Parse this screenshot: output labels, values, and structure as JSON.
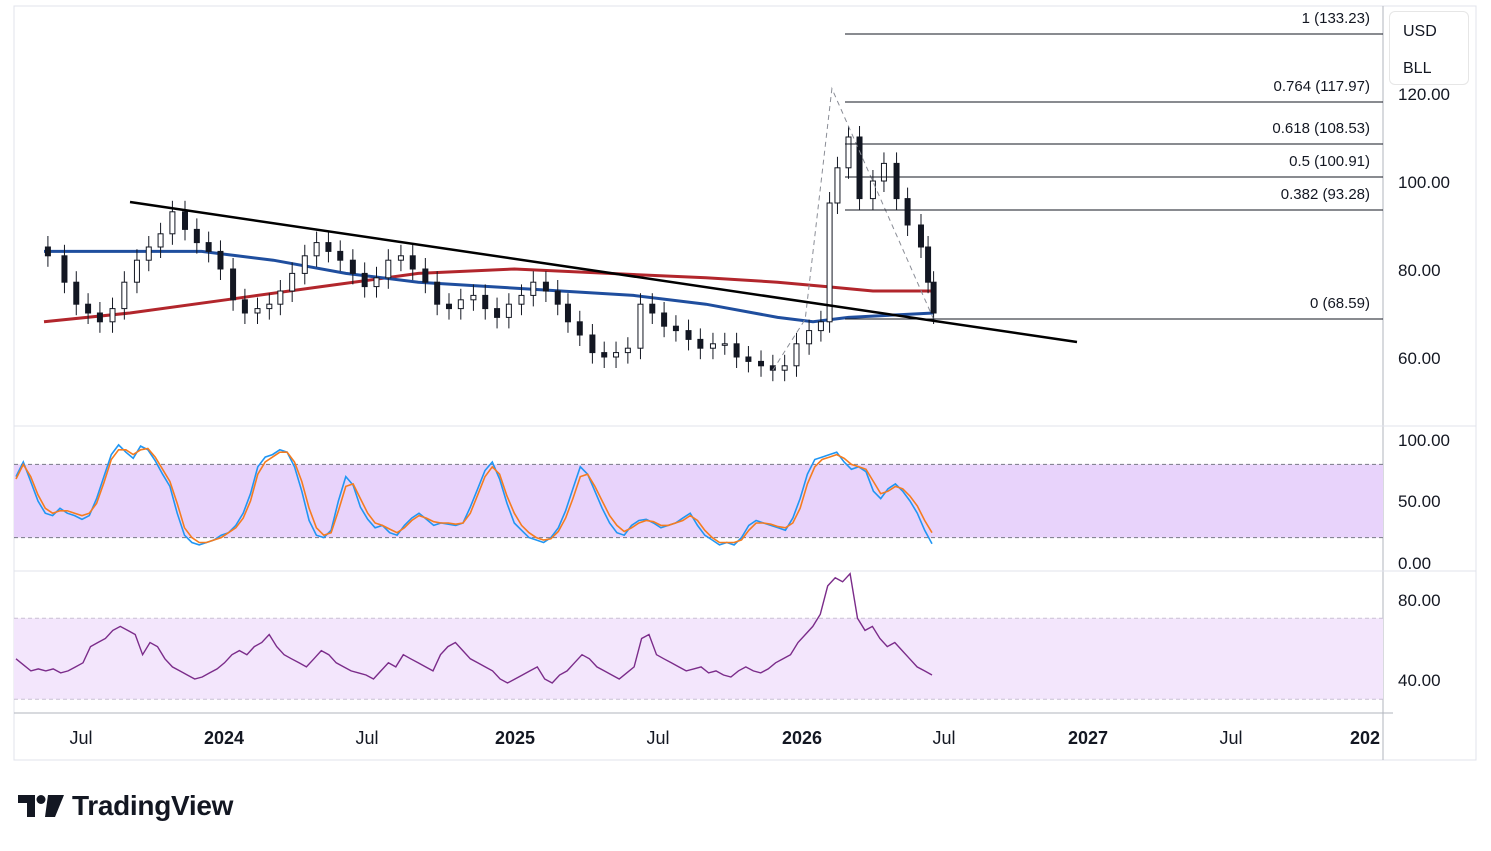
{
  "chart_data": [
    {
      "type": "candlestick",
      "symbol": "BLL",
      "currency": "USD",
      "price_axis": {
        "ticks": [
          "120.00",
          "100.00",
          "80.00",
          "60.00"
        ],
        "range": [
          48,
          140
        ]
      },
      "time_axis": {
        "ticks": [
          "Jul",
          "2024",
          "Jul",
          "2025",
          "Jul",
          "2026",
          "Jul",
          "2027",
          "Jul",
          "202"
        ],
        "tick_dates": [
          "2023-07-01",
          "2024-01-01",
          "2024-07-01",
          "2025-01-01",
          "2025-07-01",
          "2026-01-01",
          "2026-07-01",
          "2027-01-01",
          "2027-07-01",
          "2028-01-01"
        ]
      },
      "fibonacci": [
        {
          "label": "1 (133.23)",
          "ratio": 1,
          "price": 133.23
        },
        {
          "label": "0.764 (117.97)",
          "ratio": 0.764,
          "price": 117.97
        },
        {
          "label": "0.618 (108.53)",
          "ratio": 0.618,
          "price": 108.53
        },
        {
          "label": "0.5 (100.91)",
          "ratio": 0.5,
          "price": 100.91
        },
        {
          "label": "0.382 (93.28)",
          "ratio": 0.382,
          "price": 93.28
        },
        {
          "label": "0 (68.59)",
          "ratio": 0,
          "price": 68.59
        }
      ],
      "trendline": {
        "start": [
          "2023-10-15",
          95
        ],
        "end": [
          "2027-01-01",
          63
        ]
      },
      "candles_approx": [
        [
          "2023-05-20",
          83
        ],
        [
          "2023-06-10",
          77
        ],
        [
          "2023-06-25",
          72
        ],
        [
          "2023-07-10",
          70
        ],
        [
          "2023-07-25",
          68
        ],
        [
          "2023-08-10",
          71
        ],
        [
          "2023-08-25",
          77
        ],
        [
          "2023-09-10",
          82
        ],
        [
          "2023-09-25",
          85
        ],
        [
          "2023-10-10",
          88
        ],
        [
          "2023-10-25",
          93
        ],
        [
          "2023-11-10",
          89
        ],
        [
          "2023-11-25",
          86
        ],
        [
          "2023-12-10",
          84
        ],
        [
          "2023-12-25",
          80
        ],
        [
          "2024-01-10",
          73
        ],
        [
          "2024-01-25",
          70
        ],
        [
          "2024-02-10",
          71
        ],
        [
          "2024-02-25",
          72
        ],
        [
          "2024-03-10",
          75
        ],
        [
          "2024-03-25",
          79
        ],
        [
          "2024-04-10",
          83
        ],
        [
          "2024-04-25",
          86
        ],
        [
          "2024-05-10",
          84
        ],
        [
          "2024-05-25",
          82
        ],
        [
          "2024-06-10",
          79
        ],
        [
          "2024-06-25",
          76
        ],
        [
          "2024-07-10",
          78
        ],
        [
          "2024-07-25",
          82
        ],
        [
          "2024-08-10",
          83
        ],
        [
          "2024-08-25",
          80
        ],
        [
          "2024-09-10",
          77
        ],
        [
          "2024-09-25",
          72
        ],
        [
          "2024-10-10",
          71
        ],
        [
          "2024-10-25",
          73
        ],
        [
          "2024-11-10",
          74
        ],
        [
          "2024-11-25",
          71
        ],
        [
          "2024-12-10",
          69
        ],
        [
          "2024-12-25",
          72
        ],
        [
          "2025-01-10",
          74
        ],
        [
          "2025-01-25",
          77
        ],
        [
          "2025-02-10",
          75
        ],
        [
          "2025-02-25",
          72
        ],
        [
          "2025-03-10",
          68
        ],
        [
          "2025-03-25",
          65
        ],
        [
          "2025-04-10",
          61
        ],
        [
          "2025-04-25",
          60
        ],
        [
          "2025-05-10",
          61
        ],
        [
          "2025-05-25",
          62
        ],
        [
          "2025-06-10",
          72
        ],
        [
          "2025-06-25",
          70
        ],
        [
          "2025-07-10",
          67
        ],
        [
          "2025-07-25",
          66
        ],
        [
          "2025-08-10",
          64
        ],
        [
          "2025-08-25",
          62
        ],
        [
          "2025-09-10",
          63
        ],
        [
          "2025-09-25",
          63
        ],
        [
          "2025-10-10",
          60
        ],
        [
          "2025-10-25",
          59
        ],
        [
          "2025-11-10",
          58
        ],
        [
          "2025-11-25",
          57
        ],
        [
          "2025-12-10",
          58
        ],
        [
          "2025-12-25",
          63
        ],
        [
          "2026-01-10",
          66
        ],
        [
          "2026-01-25",
          68
        ],
        [
          "2026-02-05",
          95
        ],
        [
          "2026-02-15",
          103
        ],
        [
          "2026-03-01",
          110
        ],
        [
          "2026-03-15",
          96
        ],
        [
          "2026-04-01",
          100
        ],
        [
          "2026-04-15",
          104
        ],
        [
          "2026-05-01",
          96
        ],
        [
          "2026-05-15",
          90
        ],
        [
          "2026-06-01",
          85
        ],
        [
          "2026-06-10",
          77
        ],
        [
          "2026-06-17",
          70
        ]
      ],
      "moving_averages": [
        {
          "color": "#b2262c",
          "points": [
            [
              "2023-05-15",
              68
            ],
            [
              "2023-09-01",
              70
            ],
            [
              "2024-01-01",
              73
            ],
            [
              "2024-05-01",
              76
            ],
            [
              "2024-09-01",
              79
            ],
            [
              "2025-01-01",
              80
            ],
            [
              "2025-05-01",
              79
            ],
            [
              "2025-09-01",
              78
            ],
            [
              "2025-12-01",
              77
            ],
            [
              "2026-02-01",
              76
            ],
            [
              "2026-04-01",
              75
            ],
            [
              "2026-06-17",
              75
            ]
          ]
        },
        {
          "color": "#1f4e9e",
          "points": [
            [
              "2023-05-15",
              84
            ],
            [
              "2023-09-01",
              84
            ],
            [
              "2023-12-01",
              84
            ],
            [
              "2024-03-01",
              82
            ],
            [
              "2024-06-01",
              79
            ],
            [
              "2024-09-01",
              77
            ],
            [
              "2024-12-01",
              76
            ],
            [
              "2025-03-01",
              75
            ],
            [
              "2025-06-01",
              74
            ],
            [
              "2025-09-01",
              72
            ],
            [
              "2025-12-01",
              69
            ],
            [
              "2026-01-15",
              68
            ],
            [
              "2026-03-01",
              69
            ],
            [
              "2026-06-17",
              70
            ]
          ]
        }
      ]
    },
    {
      "type": "line",
      "indicator": "stochastic",
      "ticks": [
        "100.00",
        "50.00",
        "0.00"
      ],
      "band": [
        20,
        80
      ],
      "series": [
        {
          "color": "#2196f3",
          "values": [
            70,
            82,
            66,
            50,
            40,
            38,
            44,
            40,
            38,
            35,
            38,
            52,
            70,
            88,
            96,
            90,
            85,
            95,
            92,
            83,
            72,
            62,
            40,
            22,
            16,
            14,
            16,
            18,
            22,
            24,
            30,
            40,
            56,
            78,
            86,
            88,
            92,
            90,
            78,
            58,
            34,
            22,
            20,
            26,
            50,
            70,
            63,
            45,
            35,
            28,
            30,
            24,
            22,
            30,
            36,
            40,
            35,
            30,
            32,
            31,
            30,
            32,
            45,
            60,
            75,
            82,
            68,
            48,
            32,
            26,
            20,
            18,
            16,
            20,
            28,
            42,
            60,
            78,
            72,
            58,
            44,
            32,
            24,
            22,
            30,
            34,
            35,
            32,
            28,
            30,
            32,
            36,
            40,
            30,
            22,
            18,
            14,
            16,
            14,
            20,
            30,
            34,
            32,
            30,
            28,
            26,
            36,
            52,
            72,
            84,
            86,
            88,
            90,
            82,
            76,
            78,
            74,
            58,
            52,
            60,
            64,
            58,
            50,
            40,
            26,
            15
          ]
        },
        {
          "color": "#f57c20",
          "values": [
            68,
            80,
            70,
            55,
            44,
            40,
            42,
            42,
            40,
            38,
            40,
            48,
            65,
            84,
            92,
            92,
            88,
            92,
            93,
            86,
            76,
            66,
            48,
            28,
            20,
            16,
            16,
            18,
            20,
            24,
            28,
            36,
            50,
            72,
            82,
            86,
            90,
            90,
            82,
            66,
            44,
            28,
            22,
            24,
            42,
            62,
            64,
            52,
            40,
            32,
            30,
            27,
            24,
            28,
            34,
            38,
            36,
            33,
            32,
            32,
            31,
            32,
            40,
            55,
            70,
            78,
            72,
            54,
            40,
            30,
            24,
            20,
            18,
            19,
            25,
            36,
            52,
            70,
            72,
            62,
            50,
            38,
            30,
            25,
            28,
            32,
            34,
            33,
            30,
            30,
            32,
            34,
            38,
            34,
            26,
            20,
            16,
            16,
            16,
            18,
            26,
            32,
            32,
            31,
            29,
            28,
            32,
            44,
            64,
            78,
            84,
            86,
            88,
            85,
            80,
            78,
            76,
            66,
            56,
            58,
            62,
            60,
            54,
            46,
            34,
            24
          ]
        }
      ]
    },
    {
      "type": "line",
      "indicator": "RSI",
      "ticks": [
        "80.00",
        "40.00"
      ],
      "band": [
        30,
        70
      ],
      "series": [
        {
          "color": "#7b2c8a",
          "values": [
            50,
            47,
            44,
            45,
            44,
            45,
            43,
            44,
            46,
            48,
            56,
            58,
            60,
            64,
            66,
            64,
            62,
            52,
            58,
            56,
            50,
            46,
            44,
            42,
            40,
            41,
            43,
            45,
            48,
            52,
            54,
            52,
            56,
            58,
            62,
            56,
            52,
            50,
            48,
            46,
            50,
            54,
            52,
            48,
            46,
            44,
            43,
            42,
            40,
            44,
            48,
            46,
            52,
            50,
            48,
            46,
            44,
            52,
            56,
            58,
            54,
            50,
            48,
            46,
            44,
            40,
            38,
            40,
            42,
            44,
            46,
            40,
            38,
            42,
            44,
            48,
            52,
            50,
            46,
            44,
            42,
            40,
            43,
            46,
            60,
            62,
            52,
            50,
            48,
            46,
            44,
            45,
            46,
            43,
            44,
            42,
            41,
            44,
            46,
            44,
            43,
            45,
            48,
            50,
            52,
            58,
            62,
            66,
            72,
            86,
            90,
            88,
            92,
            70,
            64,
            66,
            60,
            56,
            58,
            54,
            50,
            46,
            44,
            42
          ]
        }
      ]
    }
  ],
  "branding": {
    "wordmark": "TradingView"
  }
}
